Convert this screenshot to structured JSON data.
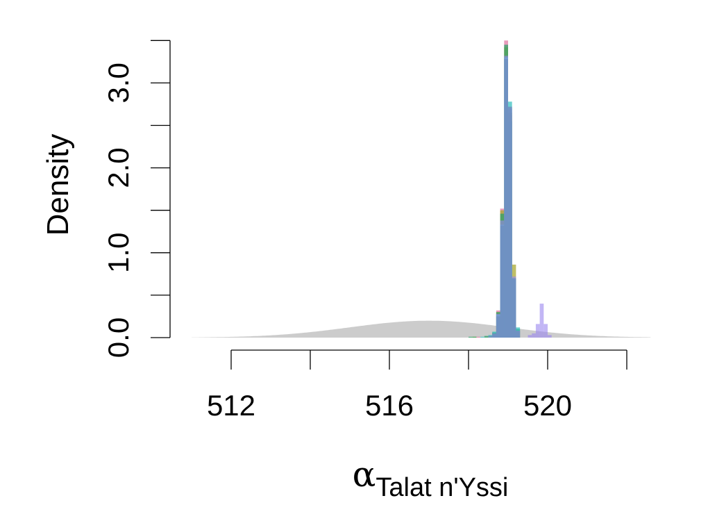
{
  "chart_data": {
    "type": "histogram",
    "title": "",
    "ylabel": "Density",
    "xlabel_symbol": "α",
    "xlabel_subscript": "Talat n'Yssi",
    "xlim": [
      511.2,
      522.4
    ],
    "ylim": [
      0,
      3.5
    ],
    "x_ticks": [
      512,
      514,
      516,
      518,
      520,
      522
    ],
    "x_tick_labels": [
      {
        "value": 512,
        "label": "512"
      },
      {
        "value": 516,
        "label": "516"
      },
      {
        "value": 520,
        "label": "520"
      }
    ],
    "y_ticks": [
      0,
      0.5,
      1.0,
      1.5,
      2.0,
      2.5,
      3.0,
      3.5
    ],
    "y_tick_labels": [
      {
        "value": 0.0,
        "label": "0.0"
      },
      {
        "value": 1.0,
        "label": "1.0"
      },
      {
        "value": 2.0,
        "label": "2.0"
      },
      {
        "value": 3.0,
        "label": "3.0"
      }
    ],
    "prior": {
      "color": "#cccccc",
      "mean": 517,
      "sd": 2,
      "x_range": [
        511,
        522.6
      ]
    },
    "bin_width": 0.1,
    "series": [
      {
        "color": "#e07ba6",
        "opacity": 0.75,
        "bins": [
          [
            518.2,
            0.01
          ],
          [
            518.5,
            0.02
          ],
          [
            518.6,
            0.05
          ],
          [
            518.7,
            0.32
          ],
          [
            518.8,
            1.52
          ],
          [
            518.9,
            3.5
          ],
          [
            519.0,
            2.62
          ],
          [
            519.1,
            0.6
          ],
          [
            519.2,
            0.08
          ]
        ]
      },
      {
        "color": "#a8a832",
        "opacity": 0.75,
        "bins": [
          [
            518.1,
            0.01
          ],
          [
            518.5,
            0.02
          ],
          [
            518.6,
            0.06
          ],
          [
            518.7,
            0.3
          ],
          [
            518.8,
            1.5
          ],
          [
            518.9,
            3.42
          ],
          [
            519.0,
            2.65
          ],
          [
            519.1,
            0.86
          ],
          [
            519.2,
            0.1
          ]
        ]
      },
      {
        "color": "#2ea26a",
        "opacity": 0.75,
        "bins": [
          [
            518.0,
            0.01
          ],
          [
            518.1,
            0.01
          ],
          [
            518.4,
            0.02
          ],
          [
            518.6,
            0.06
          ],
          [
            518.7,
            0.3
          ],
          [
            518.8,
            1.46
          ],
          [
            518.9,
            3.45
          ],
          [
            519.0,
            2.55
          ],
          [
            519.1,
            0.7
          ],
          [
            519.2,
            0.1
          ]
        ]
      },
      {
        "color": "#3cc2c2",
        "opacity": 0.75,
        "bins": [
          [
            518.3,
            0.01
          ],
          [
            518.5,
            0.03
          ],
          [
            518.6,
            0.07
          ],
          [
            518.7,
            0.27
          ],
          [
            518.8,
            1.33
          ],
          [
            518.9,
            3.3
          ],
          [
            519.0,
            2.78
          ],
          [
            519.1,
            0.7
          ],
          [
            519.2,
            0.12
          ]
        ]
      },
      {
        "color": "#9a86ee",
        "opacity": 0.6,
        "bins": [
          [
            518.6,
            0.04
          ],
          [
            518.7,
            0.28
          ],
          [
            518.8,
            1.38
          ],
          [
            518.9,
            3.32
          ],
          [
            519.0,
            2.7
          ],
          [
            519.1,
            0.72
          ],
          [
            519.2,
            0.08
          ],
          [
            519.5,
            0.03
          ],
          [
            519.6,
            0.05
          ],
          [
            519.7,
            0.16
          ],
          [
            519.8,
            0.4
          ],
          [
            519.9,
            0.16
          ],
          [
            520.0,
            0.03
          ]
        ]
      },
      {
        "color": "#6f8fbe",
        "opacity": 0.85,
        "bins": [
          [
            518.5,
            0.02
          ],
          [
            518.6,
            0.05
          ],
          [
            518.7,
            0.25
          ],
          [
            518.8,
            1.32
          ],
          [
            518.9,
            3.28
          ],
          [
            519.0,
            2.72
          ],
          [
            519.1,
            0.7
          ],
          [
            519.2,
            0.08
          ]
        ]
      }
    ]
  }
}
